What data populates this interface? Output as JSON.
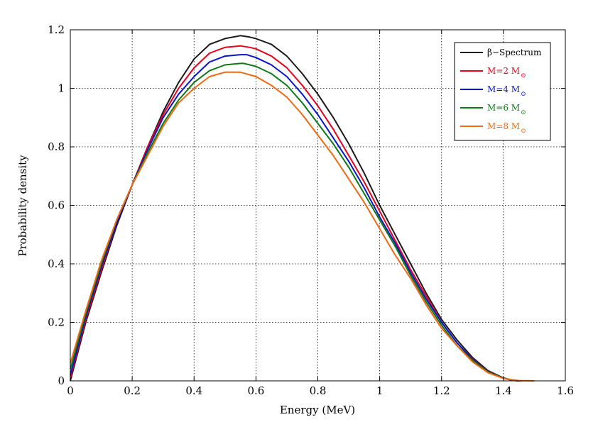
{
  "chart_data": {
    "type": "line",
    "title": "",
    "xlabel": "Energy (MeV)",
    "ylabel": "Probability density",
    "xlim": [
      0,
      1.6
    ],
    "ylim": [
      0,
      1.2
    ],
    "grid": true,
    "legend_position": "top-right",
    "x_ticks": [
      {
        "value": 0,
        "label": "0"
      },
      {
        "value": 0.2,
        "label": "0.2"
      },
      {
        "value": 0.4,
        "label": "0.4"
      },
      {
        "value": 0.6,
        "label": "0.6"
      },
      {
        "value": 0.8,
        "label": "0.8"
      },
      {
        "value": 1.0,
        "label": "1"
      },
      {
        "value": 1.2,
        "label": "1.2"
      },
      {
        "value": 1.4,
        "label": "1.4"
      },
      {
        "value": 1.6,
        "label": "1.6"
      }
    ],
    "y_ticks": [
      {
        "value": 0,
        "label": "0"
      },
      {
        "value": 0.2,
        "label": "0.2"
      },
      {
        "value": 0.4,
        "label": "0.4"
      },
      {
        "value": 0.6,
        "label": "0.6"
      },
      {
        "value": 0.8,
        "label": "0.8"
      },
      {
        "value": 1.0,
        "label": "1"
      },
      {
        "value": 1.2,
        "label": "1.2"
      }
    ],
    "series": [
      {
        "name": "β−Spectrum",
        "label_main": "β−Spectrum",
        "label_sub": "",
        "color": "#1a1a1a",
        "x": [
          0,
          0.05,
          0.1,
          0.15,
          0.2,
          0.25,
          0.3,
          0.35,
          0.4,
          0.45,
          0.5,
          0.55,
          0.58,
          0.6,
          0.65,
          0.7,
          0.75,
          0.8,
          0.85,
          0.9,
          0.95,
          1.0,
          1.05,
          1.1,
          1.15,
          1.2,
          1.25,
          1.3,
          1.35,
          1.4,
          1.43,
          1.45
        ],
        "y": [
          0.0,
          0.2,
          0.37,
          0.53,
          0.67,
          0.8,
          0.92,
          1.02,
          1.1,
          1.15,
          1.17,
          1.18,
          1.175,
          1.17,
          1.15,
          1.11,
          1.05,
          0.98,
          0.9,
          0.81,
          0.71,
          0.6,
          0.5,
          0.4,
          0.3,
          0.21,
          0.14,
          0.08,
          0.035,
          0.01,
          0.002,
          0.0
        ]
      },
      {
        "name": "M=2 M⊙",
        "label_main": "M=2 M",
        "label_sub": "⊙",
        "color": "#e8001c",
        "x": [
          0,
          0.05,
          0.1,
          0.15,
          0.2,
          0.25,
          0.3,
          0.35,
          0.4,
          0.45,
          0.5,
          0.55,
          0.58,
          0.6,
          0.65,
          0.7,
          0.75,
          0.8,
          0.85,
          0.9,
          0.95,
          1.0,
          1.05,
          1.1,
          1.15,
          1.2,
          1.25,
          1.3,
          1.35,
          1.4,
          1.43,
          1.45
        ],
        "y": [
          0.01,
          0.21,
          0.38,
          0.54,
          0.67,
          0.8,
          0.91,
          1.0,
          1.07,
          1.12,
          1.14,
          1.145,
          1.14,
          1.135,
          1.11,
          1.07,
          1.01,
          0.94,
          0.86,
          0.77,
          0.68,
          0.58,
          0.48,
          0.38,
          0.29,
          0.2,
          0.13,
          0.075,
          0.032,
          0.009,
          0.002,
          0.0
        ]
      },
      {
        "name": "M=4 M⊙",
        "label_main": "M=4 M",
        "label_sub": "⊙",
        "color": "#0a14c8",
        "x": [
          0,
          0.05,
          0.1,
          0.15,
          0.2,
          0.25,
          0.3,
          0.35,
          0.4,
          0.45,
          0.5,
          0.55,
          0.57,
          0.6,
          0.65,
          0.7,
          0.75,
          0.8,
          0.85,
          0.9,
          0.95,
          1.0,
          1.05,
          1.1,
          1.15,
          1.2,
          1.25,
          1.3,
          1.35,
          1.4,
          1.43,
          1.45
        ],
        "y": [
          0.02,
          0.22,
          0.39,
          0.54,
          0.67,
          0.79,
          0.9,
          0.98,
          1.04,
          1.09,
          1.11,
          1.115,
          1.115,
          1.105,
          1.08,
          1.04,
          0.98,
          0.91,
          0.83,
          0.75,
          0.66,
          0.56,
          0.47,
          0.37,
          0.28,
          0.2,
          0.13,
          0.073,
          0.031,
          0.009,
          0.002,
          0.0
        ]
      },
      {
        "name": "M=6 M⊙",
        "label_main": "M=6 M",
        "label_sub": "⊙",
        "color": "#0e7a16",
        "x": [
          0,
          0.05,
          0.1,
          0.15,
          0.2,
          0.25,
          0.3,
          0.35,
          0.4,
          0.45,
          0.5,
          0.55,
          0.56,
          0.6,
          0.65,
          0.7,
          0.75,
          0.8,
          0.85,
          0.9,
          0.95,
          1.0,
          1.05,
          1.1,
          1.15,
          1.2,
          1.25,
          1.3,
          1.35,
          1.4,
          1.43,
          1.46
        ],
        "y": [
          0.04,
          0.23,
          0.4,
          0.55,
          0.67,
          0.78,
          0.88,
          0.96,
          1.02,
          1.06,
          1.08,
          1.085,
          1.085,
          1.075,
          1.05,
          1.01,
          0.95,
          0.88,
          0.81,
          0.73,
          0.64,
          0.55,
          0.46,
          0.36,
          0.27,
          0.19,
          0.12,
          0.07,
          0.03,
          0.009,
          0.002,
          0.0
        ]
      },
      {
        "name": "M=8 M⊙",
        "label_main": "M=8 M",
        "label_sub": "⊙",
        "color": "#ee6a12",
        "x": [
          0,
          0.05,
          0.1,
          0.15,
          0.2,
          0.25,
          0.3,
          0.35,
          0.4,
          0.45,
          0.5,
          0.55,
          0.6,
          0.65,
          0.7,
          0.75,
          0.8,
          0.85,
          0.9,
          0.95,
          1.0,
          1.05,
          1.1,
          1.15,
          1.2,
          1.25,
          1.3,
          1.35,
          1.4,
          1.45,
          1.5
        ],
        "y": [
          0.06,
          0.24,
          0.41,
          0.55,
          0.67,
          0.77,
          0.87,
          0.95,
          1.0,
          1.04,
          1.055,
          1.055,
          1.04,
          1.01,
          0.97,
          0.91,
          0.84,
          0.77,
          0.69,
          0.61,
          0.52,
          0.43,
          0.35,
          0.26,
          0.18,
          0.12,
          0.065,
          0.028,
          0.008,
          0.001,
          0.0
        ]
      }
    ]
  }
}
